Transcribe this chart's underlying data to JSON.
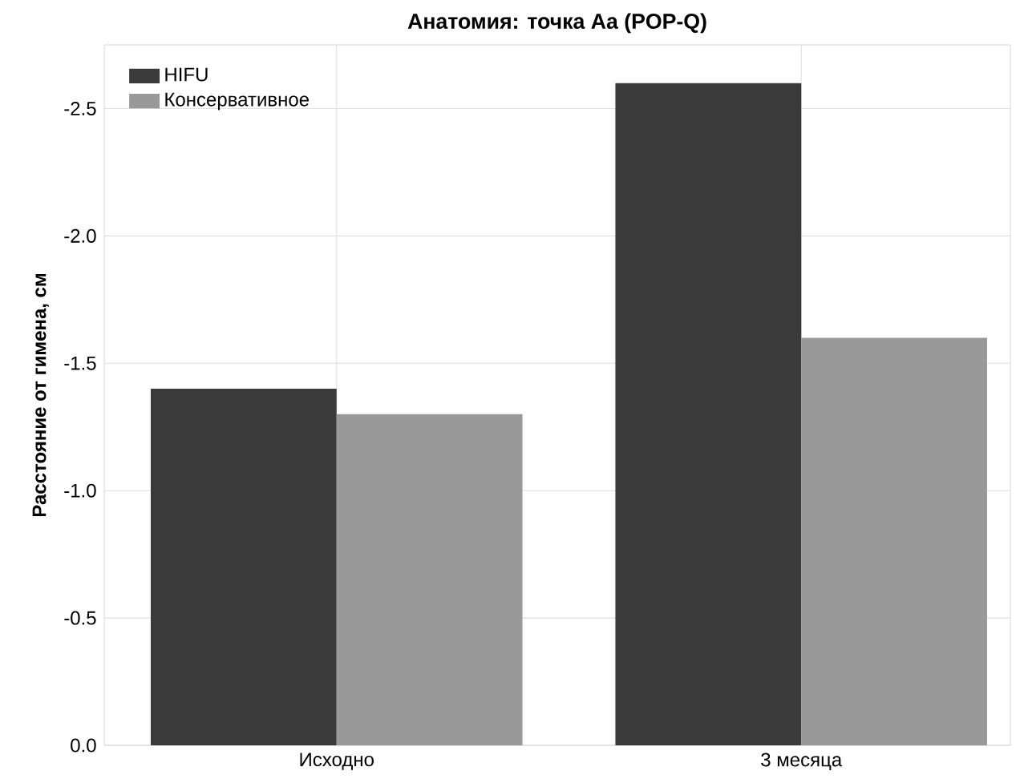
{
  "chart_data": {
    "type": "bar",
    "title": "Анатомия: точка Aa (POP-Q)",
    "ylabel": "Расстояние от гимена, см",
    "categories": [
      "Исходно",
      "3 месяца"
    ],
    "series": [
      {
        "name": "HIFU",
        "color": "#3a3a3a",
        "values": [
          -1.4,
          -2.6
        ]
      },
      {
        "name": "Консервативное",
        "color": "#999999",
        "values": [
          -1.3,
          -1.6
        ]
      }
    ],
    "ylim": [
      0,
      -2.75
    ],
    "yticks": [
      {
        "value": 0,
        "label": "0.0"
      },
      -0.5,
      {
        "value": -1,
        "label": "-1.0"
      },
      -1.5,
      {
        "value": -2,
        "label": "-2.0"
      },
      -2.5
    ],
    "grid": true,
    "legend": "top left"
  }
}
